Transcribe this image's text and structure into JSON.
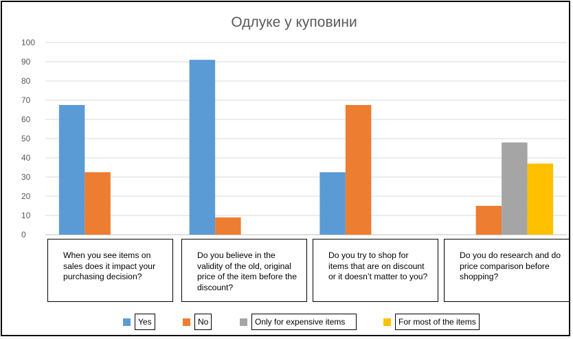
{
  "chart_data": {
    "type": "bar",
    "title": "Одлуке у куповини",
    "xlabel": "",
    "ylabel": "",
    "ylim": [
      0,
      100
    ],
    "yticks": [
      0,
      10,
      20,
      30,
      40,
      50,
      60,
      70,
      80,
      90,
      100
    ],
    "grid": true,
    "legend_position": "bottom",
    "categories": [
      "When you see items on sales does it impact your purchasing decision?",
      "Do you believe in the validity of the old, original price of the item before the discount?",
      "Do you try to shop for items that are on discount or it doesn’t matter to you?",
      "Do you do research and do price comparison before shopping?"
    ],
    "series": [
      {
        "name": "Yes",
        "color": "#5b9bd5",
        "values": [
          67.5,
          91,
          32.5,
          null
        ]
      },
      {
        "name": "No",
        "color": "#ed7d31",
        "values": [
          32.5,
          9,
          67.5,
          15
        ]
      },
      {
        "name": "Only for expensive items",
        "color": "#a5a5a5",
        "values": [
          null,
          null,
          null,
          48
        ]
      },
      {
        "name": "For most of the items",
        "color": "#ffc000",
        "values": [
          null,
          null,
          null,
          37
        ]
      }
    ]
  }
}
